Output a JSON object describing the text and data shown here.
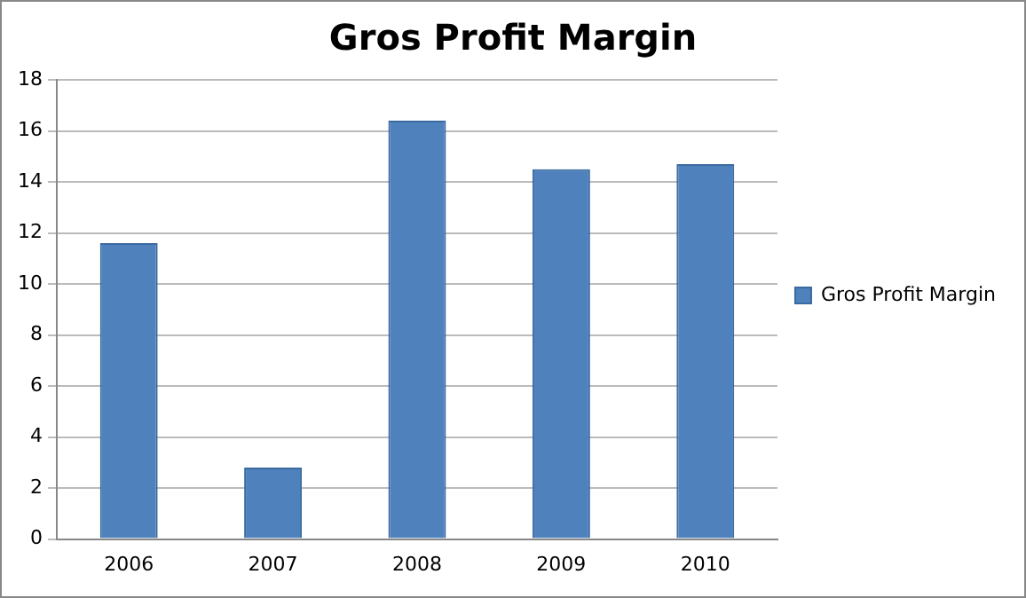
{
  "chart_data": {
    "type": "bar",
    "title": "Gros Profit Margin",
    "categories": [
      "2006",
      "2007",
      "2008",
      "2009",
      "2010"
    ],
    "series": [
      {
        "name": "Gros Profit Margin",
        "color": "#4f81bd",
        "values": [
          11.6,
          2.8,
          16.4,
          14.5,
          14.7
        ]
      }
    ],
    "ylim": [
      0,
      18
    ],
    "yticks": [
      0,
      2,
      4,
      6,
      8,
      10,
      12,
      14,
      16,
      18
    ],
    "grid": "y",
    "legend": "right"
  }
}
